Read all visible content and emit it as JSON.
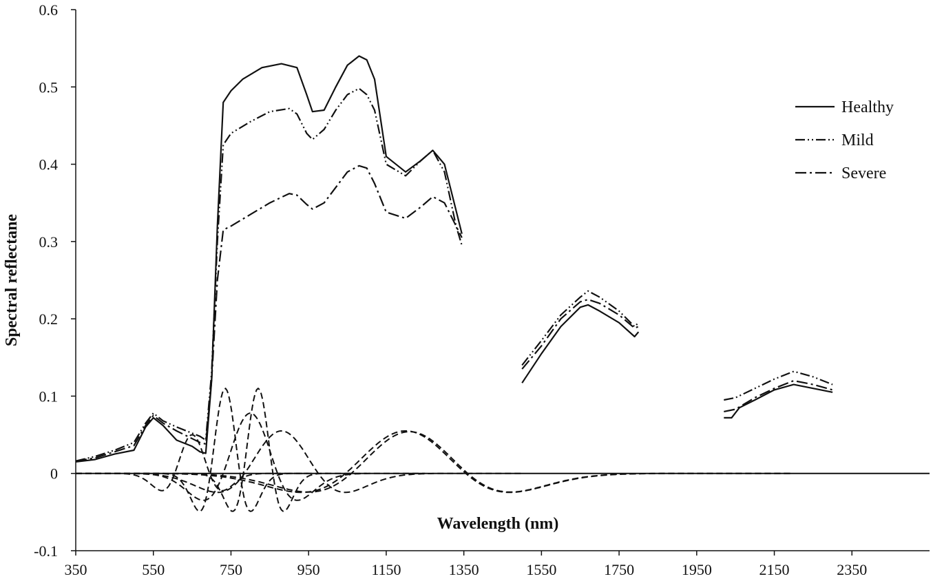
{
  "chart_data": {
    "type": "line",
    "title": "",
    "xlabel": "Wavelength (nm)",
    "ylabel": "Spectral reflectane",
    "xlim": [
      350,
      2550
    ],
    "ylim": [
      -0.1,
      0.6
    ],
    "xticks": [
      "350",
      "550",
      "750",
      "950",
      "1150",
      "1350",
      "1550",
      "1750",
      "1950",
      "2150",
      "2350"
    ],
    "yticks": [
      "-0.1",
      "0",
      "0.1",
      "0.2",
      "0.3",
      "0.4",
      "0.5",
      "0.6"
    ],
    "legend_position": "top-right",
    "series": [
      {
        "name": "Healthy",
        "style": "solid",
        "color": "#111111",
        "segments": [
          [
            [
              350,
              0.015
            ],
            [
              400,
              0.018
            ],
            [
              450,
              0.025
            ],
            [
              500,
              0.03
            ],
            [
              530,
              0.06
            ],
            [
              550,
              0.072
            ],
            [
              575,
              0.062
            ],
            [
              610,
              0.043
            ],
            [
              650,
              0.035
            ],
            [
              670,
              0.028
            ],
            [
              685,
              0.026
            ],
            [
              700,
              0.12
            ],
            [
              715,
              0.32
            ],
            [
              730,
              0.48
            ],
            [
              750,
              0.495
            ],
            [
              780,
              0.51
            ],
            [
              830,
              0.525
            ],
            [
              880,
              0.53
            ],
            [
              920,
              0.525
            ],
            [
              945,
              0.49
            ],
            [
              960,
              0.468
            ],
            [
              990,
              0.47
            ],
            [
              1020,
              0.5
            ],
            [
              1050,
              0.528
            ],
            [
              1080,
              0.54
            ],
            [
              1100,
              0.535
            ],
            [
              1120,
              0.51
            ],
            [
              1150,
              0.41
            ],
            [
              1200,
              0.39
            ],
            [
              1240,
              0.405
            ],
            [
              1270,
              0.418
            ],
            [
              1300,
              0.4
            ],
            [
              1330,
              0.34
            ],
            [
              1345,
              0.31
            ]
          ],
          [
            [
              1500,
              0.117
            ],
            [
              1550,
              0.155
            ],
            [
              1600,
              0.19
            ],
            [
              1650,
              0.215
            ],
            [
              1670,
              0.218
            ],
            [
              1700,
              0.21
            ],
            [
              1750,
              0.195
            ],
            [
              1790,
              0.177
            ],
            [
              1800,
              0.183
            ]
          ],
          [
            [
              2020,
              0.072
            ],
            [
              2040,
              0.072
            ],
            [
              2060,
              0.085
            ],
            [
              2100,
              0.095
            ],
            [
              2150,
              0.108
            ],
            [
              2200,
              0.115
            ],
            [
              2250,
              0.11
            ],
            [
              2300,
              0.105
            ]
          ]
        ]
      },
      {
        "name": "Mild",
        "style": "dash-dot-dot",
        "color": "#111111",
        "segments": [
          [
            [
              350,
              0.016
            ],
            [
              400,
              0.022
            ],
            [
              450,
              0.03
            ],
            [
              500,
              0.04
            ],
            [
              530,
              0.065
            ],
            [
              550,
              0.078
            ],
            [
              575,
              0.068
            ],
            [
              610,
              0.06
            ],
            [
              650,
              0.052
            ],
            [
              670,
              0.048
            ],
            [
              685,
              0.043
            ],
            [
              700,
              0.13
            ],
            [
              715,
              0.3
            ],
            [
              730,
              0.425
            ],
            [
              750,
              0.44
            ],
            [
              800,
              0.455
            ],
            [
              850,
              0.468
            ],
            [
              900,
              0.472
            ],
            [
              920,
              0.465
            ],
            [
              945,
              0.44
            ],
            [
              960,
              0.432
            ],
            [
              990,
              0.445
            ],
            [
              1020,
              0.47
            ],
            [
              1050,
              0.49
            ],
            [
              1080,
              0.498
            ],
            [
              1100,
              0.49
            ],
            [
              1120,
              0.47
            ],
            [
              1150,
              0.4
            ],
            [
              1200,
              0.385
            ],
            [
              1240,
              0.405
            ],
            [
              1270,
              0.418
            ],
            [
              1300,
              0.39
            ],
            [
              1330,
              0.32
            ],
            [
              1345,
              0.295
            ]
          ],
          [
            [
              1500,
              0.14
            ],
            [
              1550,
              0.172
            ],
            [
              1600,
              0.205
            ],
            [
              1650,
              0.228
            ],
            [
              1670,
              0.236
            ],
            [
              1700,
              0.228
            ],
            [
              1750,
              0.21
            ],
            [
              1790,
              0.19
            ],
            [
              1800,
              0.195
            ]
          ],
          [
            [
              2020,
              0.095
            ],
            [
              2050,
              0.098
            ],
            [
              2100,
              0.11
            ],
            [
              2150,
              0.122
            ],
            [
              2200,
              0.132
            ],
            [
              2250,
              0.125
            ],
            [
              2300,
              0.115
            ]
          ]
        ]
      },
      {
        "name": "Severe",
        "style": "dash-dot",
        "color": "#111111",
        "segments": [
          [
            [
              350,
              0.016
            ],
            [
              400,
              0.02
            ],
            [
              450,
              0.028
            ],
            [
              500,
              0.036
            ],
            [
              530,
              0.062
            ],
            [
              550,
              0.075
            ],
            [
              575,
              0.065
            ],
            [
              610,
              0.055
            ],
            [
              650,
              0.045
            ],
            [
              670,
              0.04
            ],
            [
              685,
              0.038
            ],
            [
              700,
              0.12
            ],
            [
              715,
              0.25
            ],
            [
              730,
              0.315
            ],
            [
              750,
              0.32
            ],
            [
              800,
              0.335
            ],
            [
              850,
              0.35
            ],
            [
              900,
              0.362
            ],
            [
              920,
              0.36
            ],
            [
              945,
              0.348
            ],
            [
              960,
              0.342
            ],
            [
              990,
              0.35
            ],
            [
              1020,
              0.37
            ],
            [
              1050,
              0.39
            ],
            [
              1080,
              0.398
            ],
            [
              1100,
              0.395
            ],
            [
              1120,
              0.375
            ],
            [
              1150,
              0.338
            ],
            [
              1200,
              0.33
            ],
            [
              1240,
              0.345
            ],
            [
              1270,
              0.358
            ],
            [
              1300,
              0.35
            ],
            [
              1330,
              0.32
            ],
            [
              1345,
              0.305
            ]
          ],
          [
            [
              1500,
              0.135
            ],
            [
              1550,
              0.165
            ],
            [
              1600,
              0.2
            ],
            [
              1650,
              0.222
            ],
            [
              1670,
              0.225
            ],
            [
              1700,
              0.22
            ],
            [
              1750,
              0.205
            ],
            [
              1790,
              0.188
            ],
            [
              1800,
              0.19
            ]
          ],
          [
            [
              2020,
              0.08
            ],
            [
              2050,
              0.083
            ],
            [
              2100,
              0.098
            ],
            [
              2150,
              0.11
            ],
            [
              2200,
              0.12
            ],
            [
              2250,
              0.115
            ],
            [
              2300,
              0.108
            ]
          ]
        ]
      }
    ],
    "unlabeled_dashed_curves": [
      {
        "shape": "wave",
        "center": 650,
        "sigma": 45,
        "amplitude": 0.05,
        "range": [
          350,
          950
        ]
      },
      {
        "shape": "wave",
        "center": 735,
        "sigma": 38,
        "amplitude": 0.11,
        "range": [
          500,
          1000
        ]
      },
      {
        "shape": "wave",
        "center": 820,
        "sigma": 38,
        "amplitude": 0.11,
        "range": [
          600,
          1100
        ]
      },
      {
        "shape": "wave",
        "center": 800,
        "sigma": 70,
        "amplitude": 0.078,
        "range": [
          350,
          1250
        ]
      },
      {
        "shape": "wave",
        "center": 880,
        "sigma": 95,
        "amplitude": 0.055,
        "range": [
          350,
          1500
        ]
      },
      {
        "shape": "wave",
        "center": 1200,
        "sigma": 155,
        "amplitude": 0.055,
        "range": [
          350,
          2200
        ]
      },
      {
        "shape": "wave",
        "center": 1210,
        "sigma": 150,
        "amplitude": 0.054,
        "range": [
          400,
          2200
        ]
      }
    ]
  }
}
